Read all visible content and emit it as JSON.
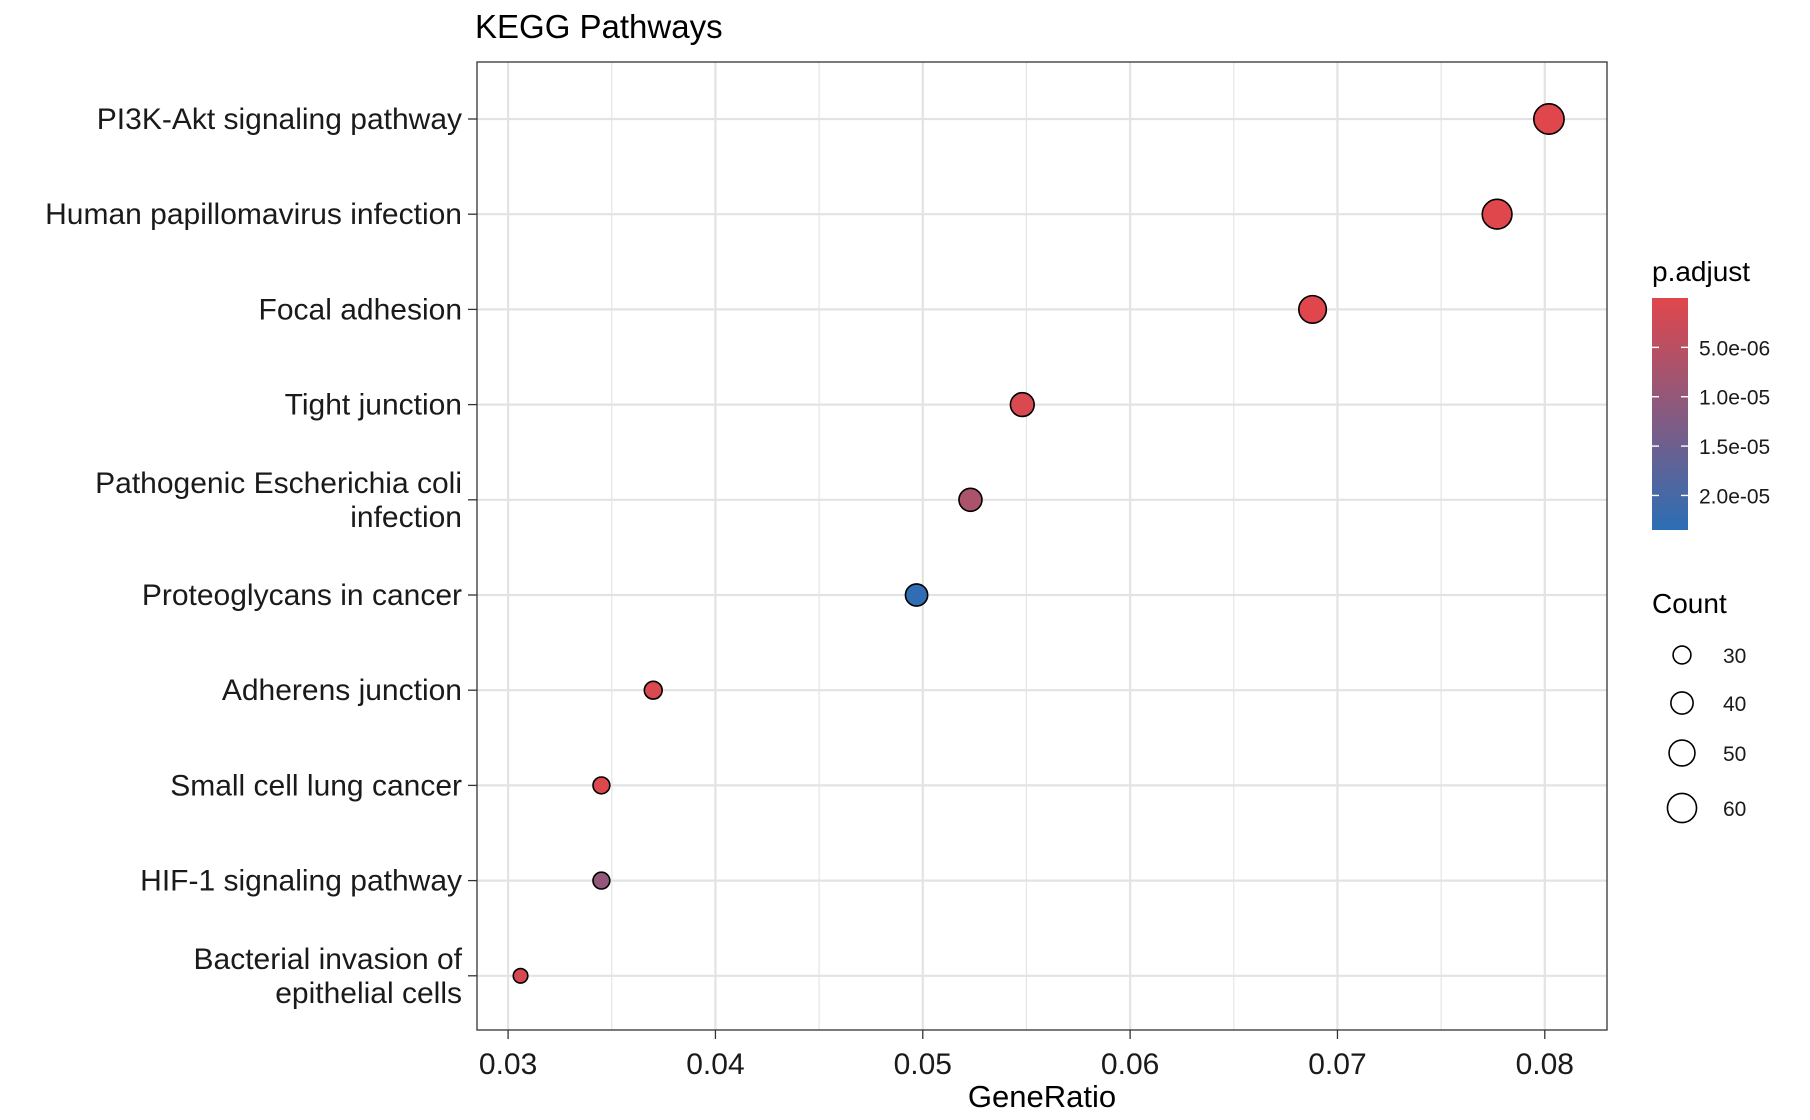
{
  "chart_data": {
    "type": "scatter",
    "title": "KEGG Pathways",
    "xlabel": "GeneRatio",
    "ylabel": "",
    "xlim": [
      0.0285,
      0.083
    ],
    "xticks": [
      0.03,
      0.04,
      0.05,
      0.06,
      0.07,
      0.08
    ],
    "xtick_labels": [
      "0.03",
      "0.04",
      "0.05",
      "0.06",
      "0.07",
      "0.08"
    ],
    "grid": true,
    "categories": [
      [
        "PI3K-Akt signaling pathway"
      ],
      [
        "Human papillomavirus infection"
      ],
      [
        "Focal adhesion"
      ],
      [
        "Tight junction"
      ],
      [
        "Pathogenic Escherichia coli",
        "infection"
      ],
      [
        "Proteoglycans in cancer"
      ],
      [
        "Adherens junction"
      ],
      [
        "Small cell lung cancer"
      ],
      [
        "HIF-1 signaling pathway"
      ],
      [
        "Bacterial invasion of",
        "epithelial cells"
      ]
    ],
    "points": [
      {
        "x": 0.0802,
        "count": 64,
        "p_adjust": 1e-09
      },
      {
        "x": 0.0777,
        "count": 62,
        "p_adjust": 2e-09
      },
      {
        "x": 0.0688,
        "count": 55,
        "p_adjust": 1e-08
      },
      {
        "x": 0.0548,
        "count": 44,
        "p_adjust": 1e-06
      },
      {
        "x": 0.0523,
        "count": 42,
        "p_adjust": 7e-06
      },
      {
        "x": 0.0497,
        "count": 40,
        "p_adjust": 2.3e-05
      },
      {
        "x": 0.037,
        "count": 30,
        "p_adjust": 1e-06
      },
      {
        "x": 0.0345,
        "count": 28,
        "p_adjust": 2e-07
      },
      {
        "x": 0.0345,
        "count": 28,
        "p_adjust": 1e-05
      },
      {
        "x": 0.0306,
        "count": 24,
        "p_adjust": 1.5e-06
      }
    ],
    "legend": {
      "placement": "right",
      "color": {
        "title": "p.adjust",
        "range": [
          0,
          2.35e-05
        ],
        "low_color": "#e0474c",
        "high_color": "#2c6eb5",
        "ticks": [
          5e-06,
          1e-05,
          1.5e-05,
          2e-05
        ],
        "tick_labels": [
          "5.0e-06",
          "1.0e-05",
          "1.5e-05",
          "2.0e-05"
        ]
      },
      "size": {
        "title": "Count",
        "values": [
          30,
          40,
          50,
          60
        ],
        "labels": [
          "30",
          "40",
          "50",
          "60"
        ]
      }
    }
  }
}
